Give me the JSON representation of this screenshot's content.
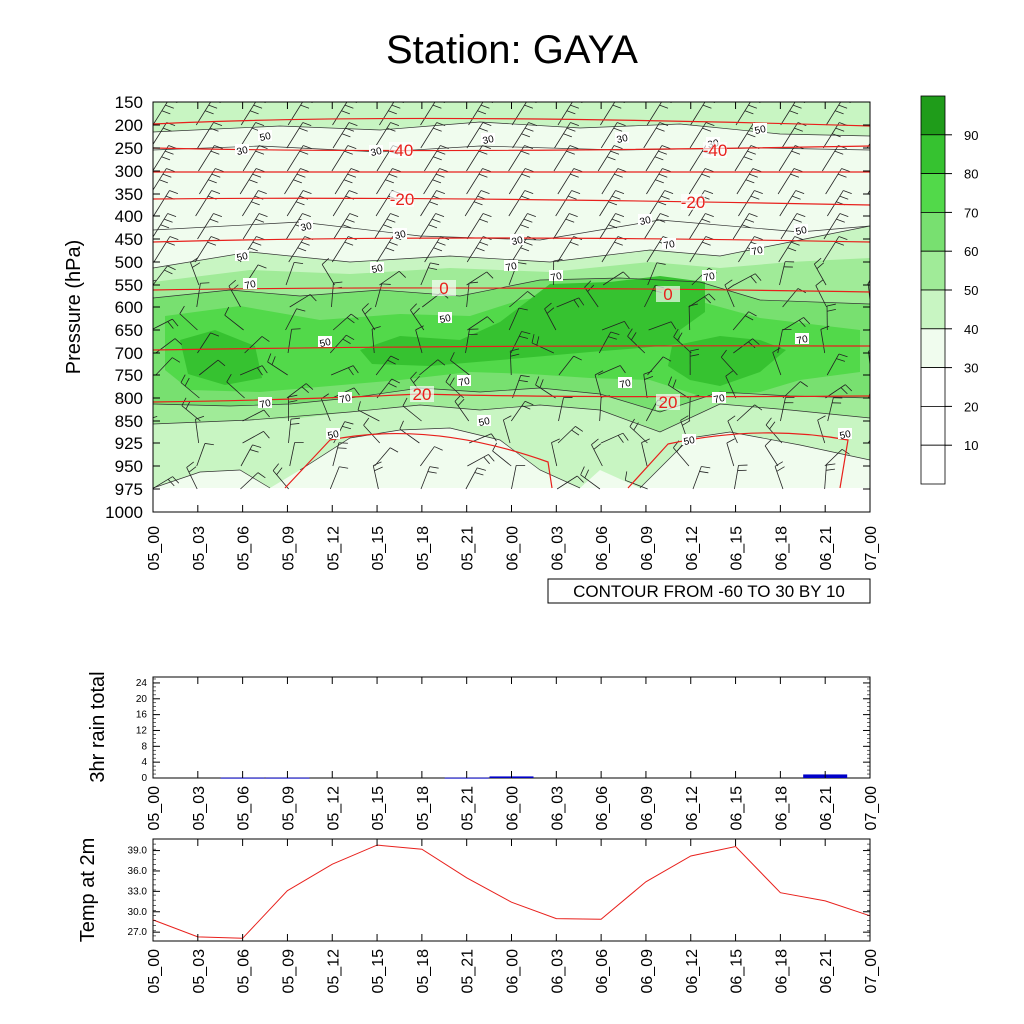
{
  "title": "Station: GAYA",
  "chart_data": [
    {
      "type": "heatmap",
      "name": "relative-humidity-cross-section",
      "ylabel": "Pressure (hPa)",
      "x_ticks": [
        "05_00",
        "05_03",
        "05_06",
        "05_09",
        "05_12",
        "05_15",
        "05_18",
        "05_21",
        "06_00",
        "06_03",
        "06_06",
        "06_09",
        "06_12",
        "06_15",
        "06_18",
        "06_21",
        "07_00"
      ],
      "y_ticks": [
        "150",
        "200",
        "250",
        "300",
        "350",
        "400",
        "450",
        "500",
        "550",
        "600",
        "650",
        "700",
        "750",
        "800",
        "850",
        "925",
        "950",
        "975",
        "1000"
      ],
      "fill_levels": [
        10,
        20,
        30,
        40,
        50,
        60,
        70,
        80,
        90
      ],
      "colorbar_labels": [
        "90",
        "80",
        "70",
        "60",
        "50",
        "40",
        "30",
        "20",
        "10"
      ],
      "colorbar_colors": [
        "#ffffff",
        "#ffffff",
        "#ffffff",
        "#f0fcee",
        "#c8f5c2",
        "#a0eb98",
        "#78e070",
        "#52d94a",
        "#36c230",
        "#1f9c1a"
      ],
      "fill_contour_labels": [
        "50",
        "30",
        "30",
        "30",
        "30",
        "50",
        "30",
        "30",
        "30",
        "30",
        "30",
        "50",
        "50",
        "50",
        "70",
        "70",
        "70",
        "70",
        "70",
        "70",
        "50",
        "50",
        "70",
        "70",
        "70",
        "70",
        "70",
        "70",
        "50",
        "50",
        "50",
        "50"
      ],
      "temperature_contours": {
        "levels": [
          -40,
          -20,
          0,
          20
        ],
        "labels": [
          "-40",
          "-40",
          "-20",
          "-20",
          "0",
          "0",
          "20",
          "20"
        ],
        "info": "CONTOUR FROM -60 TO 30 BY 10",
        "color": "#e8201c"
      }
    },
    {
      "type": "bar",
      "name": "3hr-rain-total",
      "ylabel": "3hr rain total",
      "categories": [
        "05_00",
        "05_03",
        "05_06",
        "05_09",
        "05_12",
        "05_15",
        "05_18",
        "05_21",
        "06_00",
        "06_03",
        "06_06",
        "06_09",
        "06_12",
        "06_15",
        "06_18",
        "06_21",
        "07_00"
      ],
      "y_ticks": [
        "0",
        "4",
        "8",
        "12",
        "16",
        "20",
        "24"
      ],
      "ylim": [
        0,
        25.5
      ],
      "values": [
        0,
        0,
        0.1,
        0.1,
        0,
        0,
        0,
        0.1,
        0.4,
        0,
        0,
        0,
        0,
        0,
        0,
        0.9,
        0
      ],
      "color": "#0000c8"
    },
    {
      "type": "line",
      "name": "temp-at-2m",
      "ylabel": "Temp at 2m",
      "categories": [
        "05_00",
        "05_03",
        "05_06",
        "05_09",
        "05_12",
        "05_15",
        "05_18",
        "05_21",
        "06_00",
        "06_03",
        "06_06",
        "06_09",
        "06_12",
        "06_15",
        "06_18",
        "06_21",
        "07_00"
      ],
      "y_ticks": [
        "27.0",
        "30.0",
        "33.0",
        "36.0",
        "39.0"
      ],
      "ylim": [
        25.7,
        40.7
      ],
      "values": [
        28.8,
        26.3,
        26.1,
        33.1,
        37.0,
        39.8,
        39.2,
        35.0,
        31.4,
        29.0,
        28.9,
        34.4,
        38.2,
        39.6,
        32.8,
        31.6,
        29.4
      ],
      "color": "#e8201c"
    }
  ]
}
